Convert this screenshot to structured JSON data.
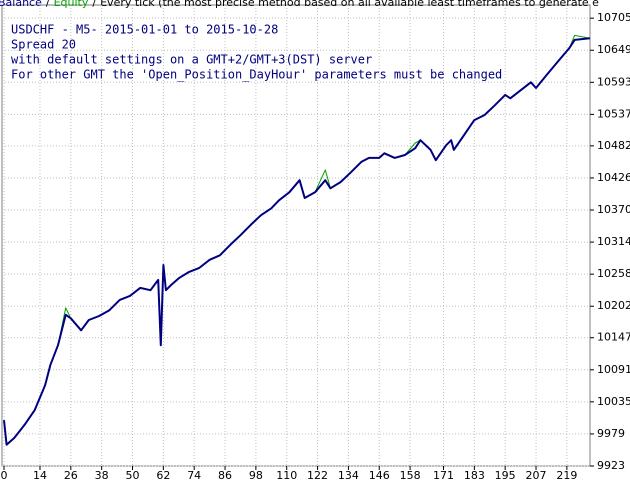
{
  "chart_data": {
    "type": "line",
    "header": {
      "separator": "/",
      "method": "Every tick (the most precise method based on all available least timeframes to generate e"
    },
    "annotations": [
      "USDCHF - M5- 2015-01-01 to 2015-10-28",
      "Spread 20",
      "with default settings on a GMT+2/GMT+3(DST) server",
      "For other GMT the 'Open_Position_DayHour' parameters must be changed"
    ],
    "x": [
      0,
      1,
      4,
      8,
      12,
      16,
      18,
      21,
      24,
      26,
      30,
      33,
      37,
      41,
      45,
      49,
      53,
      57,
      60,
      61,
      62,
      63,
      65,
      68,
      72,
      76,
      80,
      84,
      88,
      92,
      96,
      100,
      104,
      107,
      111,
      115,
      117,
      121,
      125,
      127,
      131,
      135,
      139,
      142,
      146,
      148,
      152,
      156,
      160,
      162,
      166,
      168,
      172,
      174,
      175,
      179,
      183,
      187,
      191,
      195,
      197,
      201,
      205,
      207,
      211,
      216,
      220,
      222,
      228
    ],
    "series": [
      {
        "name": "Equity",
        "color": "#00a000",
        "values": [
          10003,
          9960,
          9972,
          9995,
          10021,
          10064,
          10099,
          10134,
          10199,
          10181,
          10160,
          10178,
          10185,
          10195,
          10213,
          10220,
          10234,
          10230,
          10248,
          10134,
          10274,
          10230,
          10239,
          10251,
          10262,
          10269,
          10283,
          10291,
          10309,
          10326,
          10344,
          10361,
          10373,
          10387,
          10401,
          10422,
          10391,
          10401,
          10440,
          10408,
          10419,
          10436,
          10454,
          10461,
          10461,
          10469,
          10461,
          10466,
          10487,
          10492,
          10475,
          10457,
          10483,
          10492,
          10475,
          10501,
          10527,
          10536,
          10553,
          10571,
          10565,
          10579,
          10593,
          10583,
          10605,
          10632,
          10653,
          10675,
          10670
        ]
      },
      {
        "name": "Balance",
        "color": "#000080",
        "values": [
          10003,
          9960,
          9972,
          9995,
          10021,
          10064,
          10099,
          10134,
          10187,
          10181,
          10160,
          10178,
          10185,
          10195,
          10213,
          10220,
          10234,
          10230,
          10248,
          10134,
          10274,
          10230,
          10239,
          10251,
          10262,
          10269,
          10283,
          10291,
          10309,
          10326,
          10344,
          10361,
          10373,
          10387,
          10401,
          10422,
          10391,
          10401,
          10422,
          10408,
          10419,
          10436,
          10454,
          10461,
          10461,
          10469,
          10461,
          10466,
          10478,
          10492,
          10475,
          10457,
          10483,
          10492,
          10475,
          10501,
          10527,
          10536,
          10553,
          10571,
          10565,
          10579,
          10593,
          10583,
          10605,
          10632,
          10653,
          10667,
          10670
        ]
      }
    ],
    "xlim": [
      0,
      228
    ],
    "xticks": [
      0,
      14,
      26,
      38,
      50,
      62,
      74,
      86,
      98,
      110,
      122,
      134,
      146,
      158,
      171,
      183,
      195,
      207,
      219
    ],
    "ylim": [
      9923,
      10728
    ],
    "yticks": [
      9923,
      9979,
      10035,
      10091,
      10147,
      10202,
      10258,
      10314,
      10370,
      10426,
      10482,
      10537,
      10593,
      10649,
      10705
    ],
    "grid": true
  }
}
